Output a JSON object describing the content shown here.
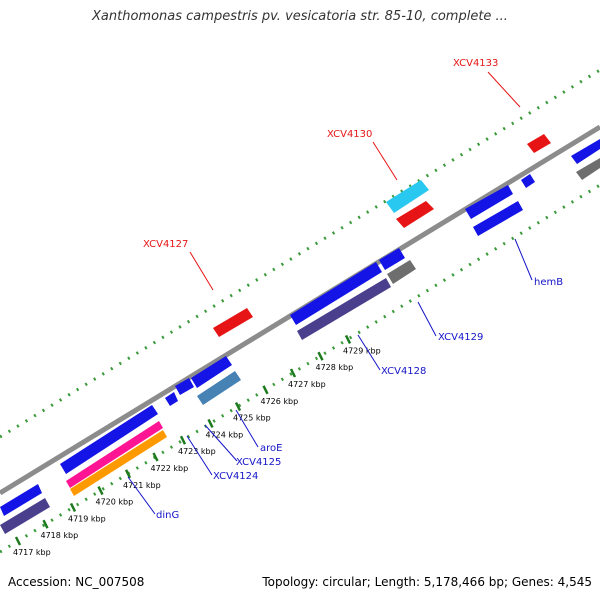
{
  "title": "Xanthomonas campestris pv. vesicatoria str. 85-10, complete ...",
  "footer": {
    "accession": "Accession: NC_007508",
    "summary": "Topology: circular; Length: 5,178,466 bp; Genes: 4,545"
  },
  "colors": {
    "backbone": "#8c8c8c",
    "tick_dots": "#3a9a3a",
    "tick_marks": "#1e7a1e",
    "gene_blue": "#1414e6",
    "gene_red": "#e61414",
    "gene_dark": "#4a3f8c",
    "gene_cyan": "#28c8f0",
    "gene_steel": "#4682b4",
    "gene_gray": "#6e6e6e",
    "gene_pink": "#ff1493",
    "gene_orange": "#ff9900",
    "label_red": "#e61414",
    "label_blue": "#1414c8"
  },
  "ticks": [
    "4717 kbp",
    "4718 kbp",
    "4719 kbp",
    "4720 kbp",
    "4721 kbp",
    "4722 kbp",
    "4723 kbp",
    "4724 kbp",
    "4725 kbp",
    "4726 kbp",
    "4727 kbp",
    "4728 kbp",
    "4729 kbp"
  ],
  "gene_labels_top": [
    "XCV4133",
    "XCV4130",
    "XCV4127"
  ],
  "gene_labels_bottom": [
    "hemB",
    "XCV4129",
    "XCV4128",
    "aroE",
    "XCV4125",
    "XCV4124",
    "dinG"
  ]
}
